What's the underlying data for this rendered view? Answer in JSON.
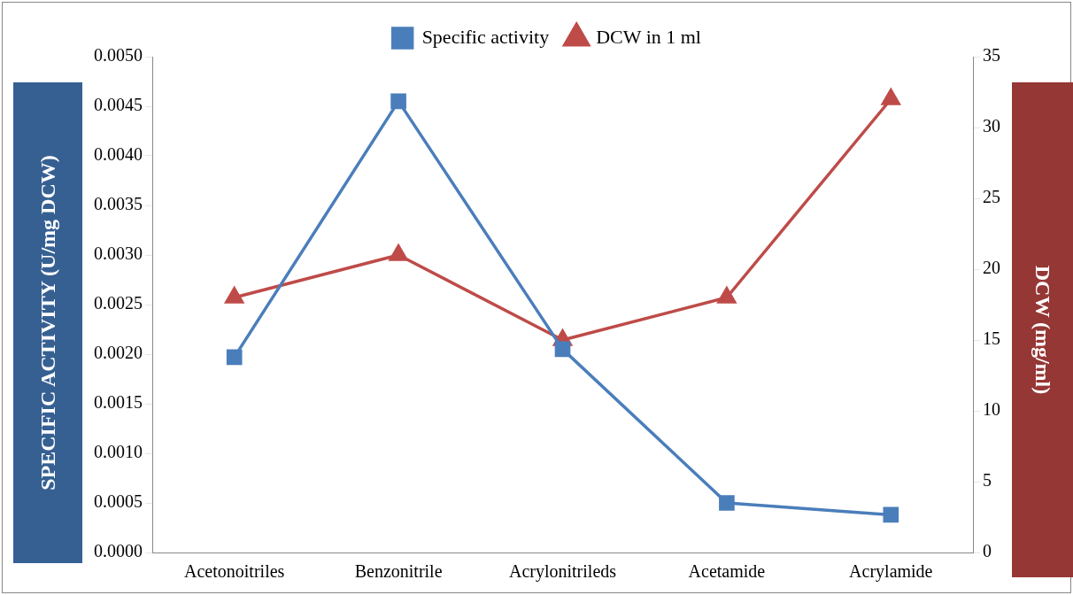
{
  "chart_data": {
    "type": "line",
    "categories": [
      "Acetonoitriles",
      "Benzonitrile",
      "Acrylonitrileds",
      "Acetamide",
      "Acrylamide"
    ],
    "series": [
      {
        "name": "Specific activity",
        "color": "#4a7ebb",
        "marker": "square",
        "values": [
          0.00197,
          0.00455,
          0.00205,
          0.0005,
          0.00038
        ]
      },
      {
        "name": "DCW in 1 ml",
        "color": "#be4b48",
        "marker": "triangle",
        "axis": "y2",
        "values": [
          18,
          21,
          15,
          18,
          32
        ]
      }
    ],
    "ylabel": "SPECIFIC ACTIVITY (U/mg DCW)",
    "y2label": "DCW (mg/ml)",
    "ylim": [
      0,
      0.005
    ],
    "yticks": [
      {
        "value": 0,
        "label": "0.0000"
      },
      {
        "value": 0.0005,
        "label": "0.0005"
      },
      {
        "value": 0.001,
        "label": "0.0010"
      },
      {
        "value": 0.0015,
        "label": "0.0015"
      },
      {
        "value": 0.002,
        "label": "0.0020"
      },
      {
        "value": 0.0025,
        "label": "0.0025"
      },
      {
        "value": 0.003,
        "label": "0.0030"
      },
      {
        "value": 0.0035,
        "label": "0.0035"
      },
      {
        "value": 0.004,
        "label": "0.0040"
      },
      {
        "value": 0.0045,
        "label": "0.0045"
      },
      {
        "value": 0.005,
        "label": "0.0050"
      }
    ],
    "y2lim": [
      0,
      35
    ],
    "y2ticks": [
      0,
      5,
      10,
      15,
      20,
      25,
      30,
      35
    ],
    "grid": false,
    "legend": "top",
    "line_style": "solid"
  }
}
